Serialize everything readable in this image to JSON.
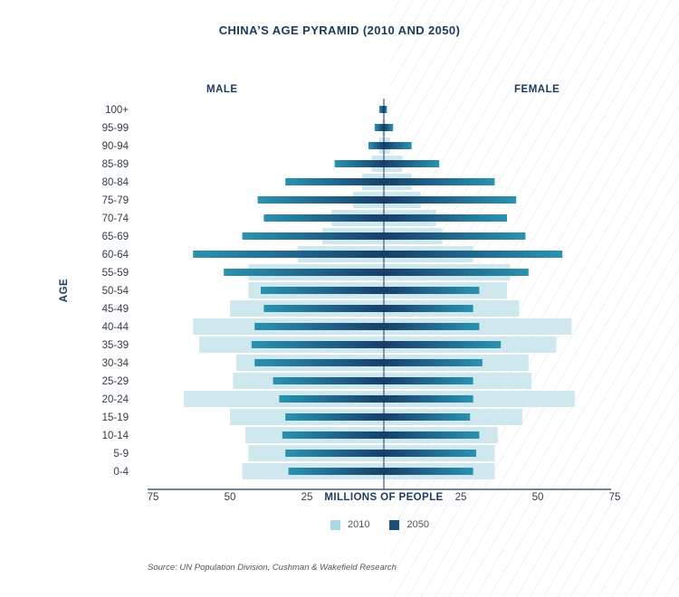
{
  "title": "CHINA’S AGE PYRAMID (2010 AND 2050)",
  "left_label": "MALE",
  "right_label": "FEMALE",
  "y_axis_label": "AGE",
  "x_axis_label": "MILLIONS OF PEOPLE",
  "source": "Source: UN Population Division, Cushman & Wakefield Research",
  "legend": [
    {
      "name": "2010",
      "color": "#a8d8e4"
    },
    {
      "name": "2050",
      "color": "#1a4f7a"
    }
  ],
  "colors": {
    "bar_2010": "#cfe8ee",
    "bar_2050_outer": "#2a92b0",
    "bar_2050_inner": "#173f6a",
    "axis": "#1c3a5e"
  },
  "chart_data": {
    "type": "bar",
    "orientation": "horizontal-pyramid",
    "title": "CHINA’S AGE PYRAMID (2010 AND 2050)",
    "xlabel": "MILLIONS OF PEOPLE",
    "ylabel": "AGE",
    "xlim": [
      0,
      75
    ],
    "x_ticks_left": [
      "75",
      "50",
      "25"
    ],
    "x_ticks_right": [
      "25",
      "50",
      "75"
    ],
    "x_tick_values": [
      75,
      50,
      25
    ],
    "categories": [
      "0-4",
      "5-9",
      "10-14",
      "15-19",
      "20-24",
      "25-29",
      "30-34",
      "35-39",
      "40-44",
      "45-49",
      "50-54",
      "55-59",
      "60-64",
      "65-69",
      "70-74",
      "75-79",
      "80-84",
      "85-89",
      "90-94",
      "95-99",
      "100+"
    ],
    "series": [
      {
        "name": "2010",
        "side": "male",
        "values": [
          46,
          44,
          45,
          50,
          65,
          49,
          48,
          60,
          62,
          50,
          44,
          44,
          28,
          20,
          17,
          10,
          7,
          4,
          1.5,
          0.5,
          0.2
        ]
      },
      {
        "name": "2010",
        "side": "female",
        "values": [
          36,
          36,
          37,
          45,
          62,
          48,
          47,
          56,
          61,
          44,
          40,
          41,
          29,
          19,
          17,
          12,
          9,
          6,
          2,
          0.5,
          0.2
        ]
      },
      {
        "name": "2050",
        "side": "male",
        "values": [
          31,
          32,
          33,
          32,
          34,
          36,
          42,
          43,
          42,
          39,
          40,
          52,
          62,
          46,
          39,
          41,
          32,
          16,
          5,
          3,
          1.5
        ]
      },
      {
        "name": "2050",
        "side": "female",
        "values": [
          29,
          30,
          31,
          28,
          29,
          29,
          32,
          38,
          31,
          29,
          31,
          47,
          58,
          46,
          40,
          43,
          36,
          18,
          9,
          3,
          1
        ]
      }
    ],
    "legend_position": "bottom",
    "grid": false
  }
}
